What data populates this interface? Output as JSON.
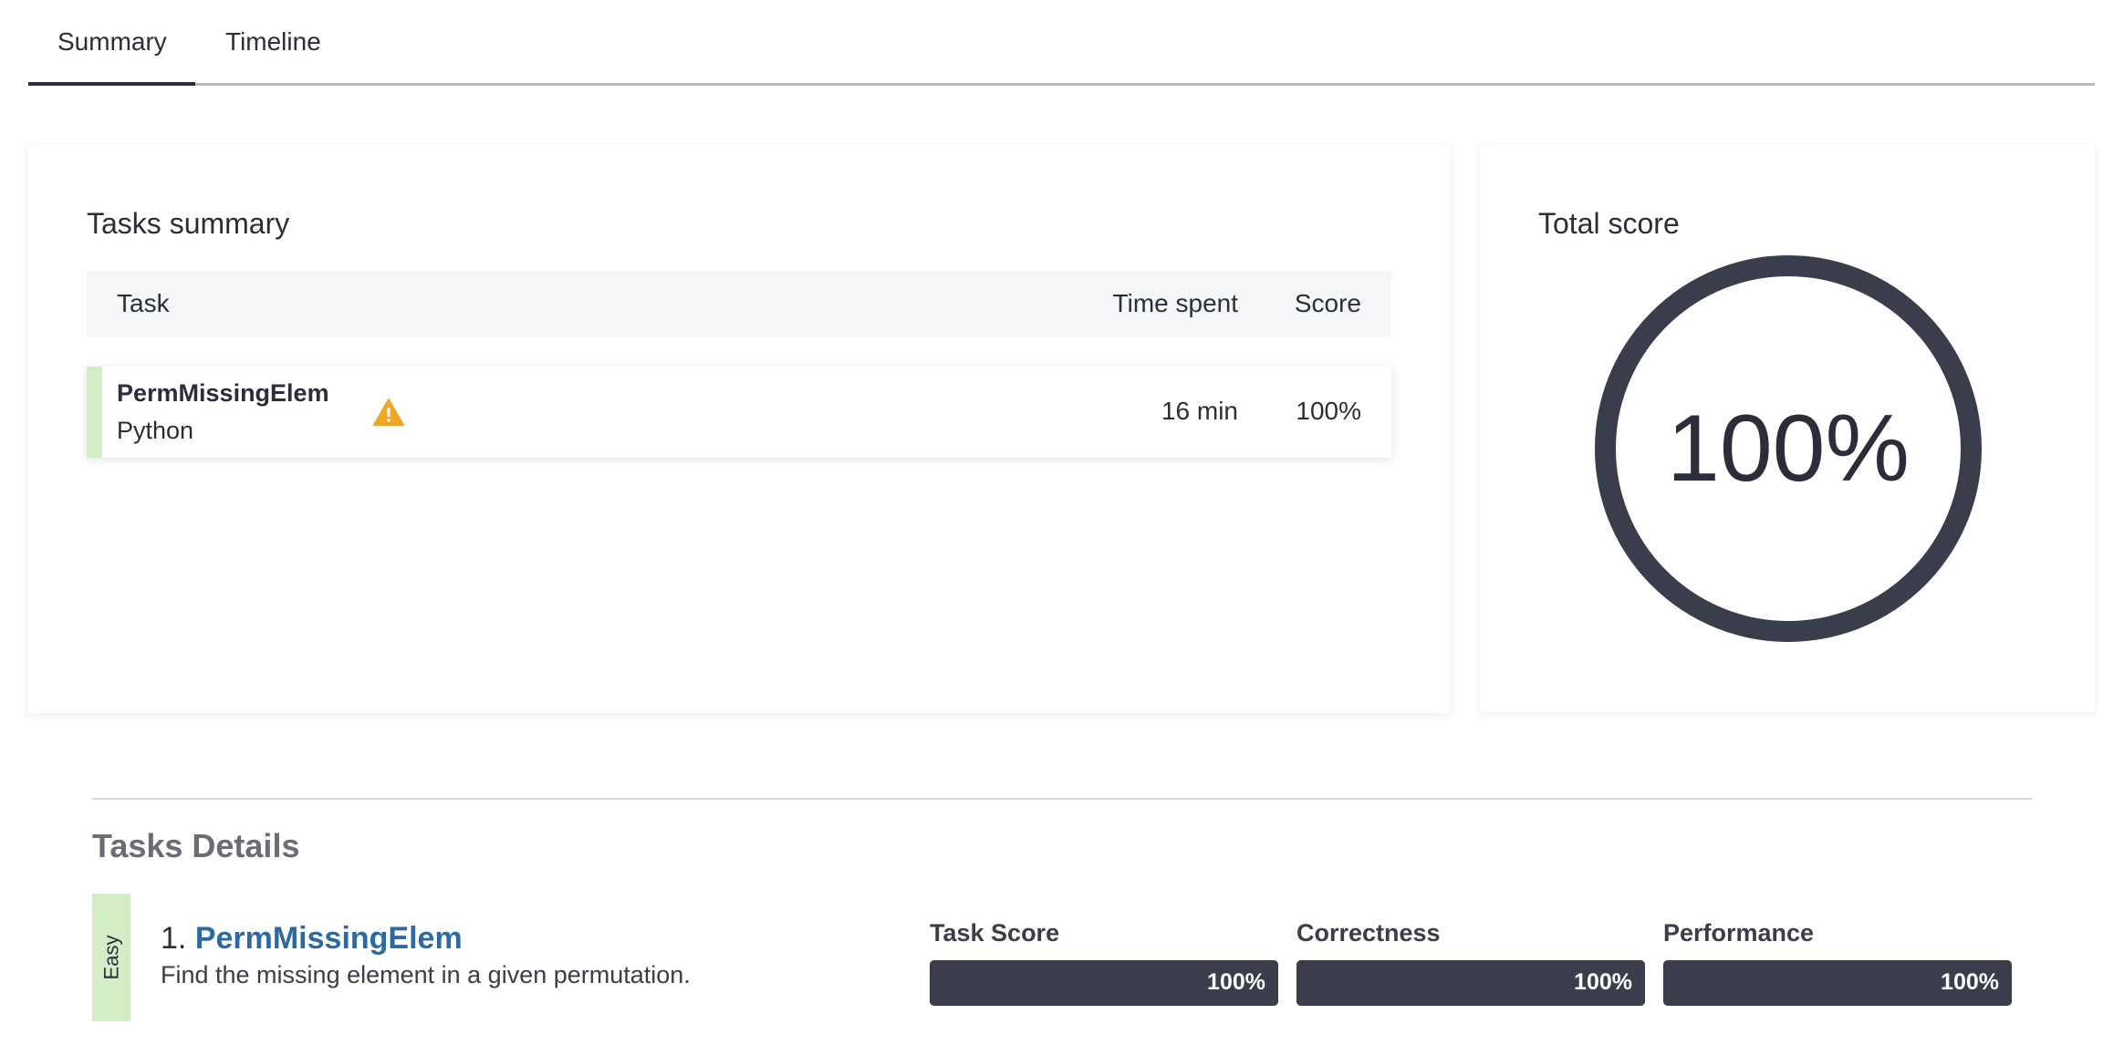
{
  "tabs": [
    {
      "label": "Summary",
      "active": true
    },
    {
      "label": "Timeline",
      "active": false
    }
  ],
  "tasks_summary": {
    "title": "Tasks summary",
    "columns": {
      "task": "Task",
      "time": "Time spent",
      "score": "Score"
    },
    "rows": [
      {
        "name": "PermMissingElem",
        "language": "Python",
        "warning_icon": "warning-triangle-icon",
        "time": "16 min",
        "score": "100%"
      }
    ]
  },
  "total_score": {
    "title": "Total score",
    "value": "100%",
    "fraction": 1.0
  },
  "tasks_details": {
    "title": "Tasks Details",
    "items": [
      {
        "difficulty": "Easy",
        "number": "1.",
        "name": "PermMissingElem",
        "description": "Find the missing element in a given permutation.",
        "metrics": [
          {
            "label": "Task Score",
            "value": "100%",
            "fraction": 1.0
          },
          {
            "label": "Correctness",
            "value": "100%",
            "fraction": 1.0
          },
          {
            "label": "Performance",
            "value": "100%",
            "fraction": 1.0
          }
        ]
      }
    ]
  },
  "colors": {
    "accent_dark": "#3a3d4b",
    "easy_green": "#d4edc7",
    "link_blue": "#2d6a9f",
    "warning_orange": "#f0a626"
  }
}
